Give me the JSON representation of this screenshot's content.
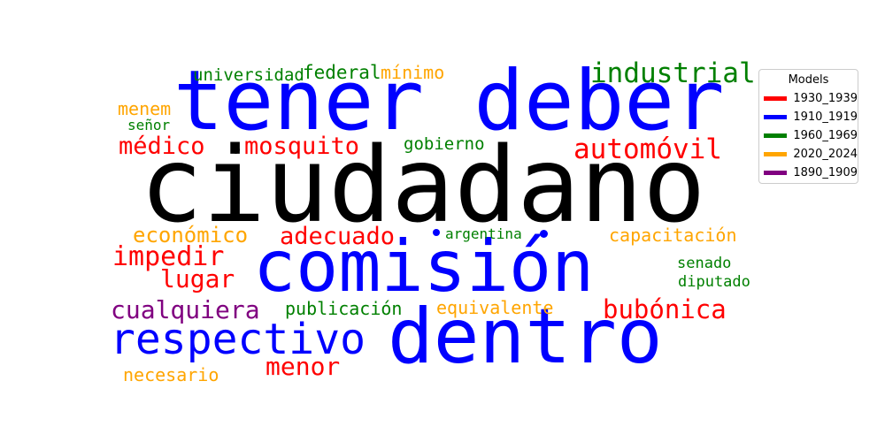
{
  "chart_data": {
    "type": "wordcloud",
    "legend": {
      "title": "Models",
      "placement": "right",
      "entries": [
        {
          "name": "1930_1939",
          "color": "#ff0000"
        },
        {
          "name": "1910_1919",
          "color": "#0000ff"
        },
        {
          "name": "1960_1969",
          "color": "#008000"
        },
        {
          "name": "2020_2024",
          "color": "#ffa500"
        },
        {
          "name": "1890_1909",
          "color": "#800080"
        }
      ]
    },
    "words": [
      {
        "text": "ciudadano",
        "group": "none",
        "color": "#000000"
      },
      {
        "text": "tener deber",
        "group": "1910_1919",
        "color": "#0000ff"
      },
      {
        "text": "comisión",
        "group": "1910_1919",
        "color": "#0000ff"
      },
      {
        "text": "dentro",
        "group": "1910_1919",
        "color": "#0000ff"
      },
      {
        "text": "respectivo",
        "group": "1910_1919",
        "color": "#0000ff"
      },
      {
        "text": "industrial",
        "group": "1960_1969",
        "color": "#008000"
      },
      {
        "text": "automóvil",
        "group": "1930_1939",
        "color": "#ff0000"
      },
      {
        "text": "médico",
        "group": "1930_1939",
        "color": "#ff0000"
      },
      {
        "text": "mosquito",
        "group": "1930_1939",
        "color": "#ff0000"
      },
      {
        "text": "adecuado",
        "group": "1930_1939",
        "color": "#ff0000"
      },
      {
        "text": "impedir",
        "group": "1930_1939",
        "color": "#ff0000"
      },
      {
        "text": "lugar",
        "group": "1930_1939",
        "color": "#ff0000"
      },
      {
        "text": "bubónica",
        "group": "1930_1939",
        "color": "#ff0000"
      },
      {
        "text": "menor",
        "group": "1930_1939",
        "color": "#ff0000"
      },
      {
        "text": "cualquiera",
        "group": "1890_1909",
        "color": "#800080"
      },
      {
        "text": "económico",
        "group": "2020_2024",
        "color": "#ffa500"
      },
      {
        "text": "menem",
        "group": "2020_2024",
        "color": "#ffa500"
      },
      {
        "text": "mínimo",
        "group": "2020_2024",
        "color": "#ffa500"
      },
      {
        "text": "capacitación",
        "group": "2020_2024",
        "color": "#ffa500"
      },
      {
        "text": "equivalente",
        "group": "2020_2024",
        "color": "#ffa500"
      },
      {
        "text": "necesario",
        "group": "2020_2024",
        "color": "#ffa500"
      },
      {
        "text": "universidad",
        "group": "1960_1969",
        "color": "#008000"
      },
      {
        "text": "federal",
        "group": "1960_1969",
        "color": "#008000"
      },
      {
        "text": "señor",
        "group": "1960_1969",
        "color": "#008000"
      },
      {
        "text": "gobierno",
        "group": "1960_1969",
        "color": "#008000"
      },
      {
        "text": "argentina",
        "group": "1960_1969",
        "color": "#008000"
      },
      {
        "text": "senado",
        "group": "1960_1969",
        "color": "#008000"
      },
      {
        "text": "diputado",
        "group": "1960_1969",
        "color": "#008000"
      },
      {
        "text": "publicación",
        "group": "1960_1969",
        "color": "#008000"
      }
    ]
  }
}
